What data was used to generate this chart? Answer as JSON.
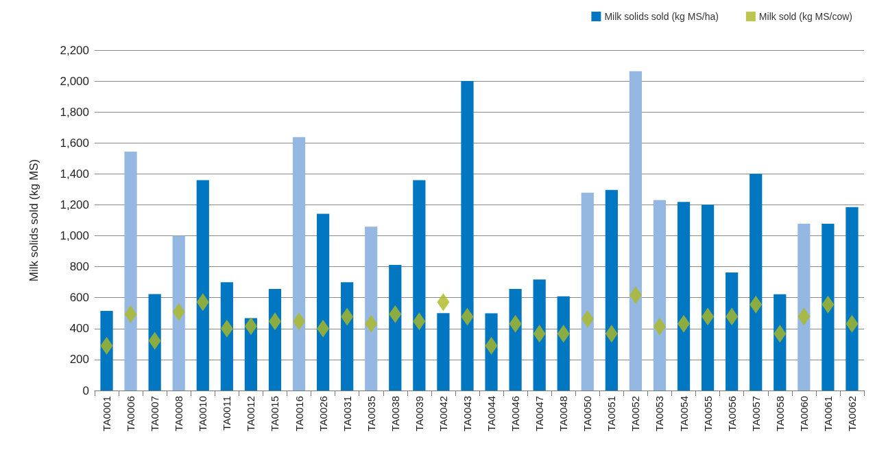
{
  "chart_data": {
    "type": "bar",
    "ylabel": "Milk solids sold (kg MS)",
    "categories": [
      "TA0001",
      "TA0006",
      "TA0007",
      "TA0008",
      "TA0010",
      "TA0011",
      "TA0012",
      "TA0015",
      "TA0016",
      "TA0026",
      "TA0031",
      "TA0035",
      "TA0038",
      "TA0039",
      "TA0042",
      "TA0043",
      "TA0044",
      "TA0046",
      "TA0047",
      "TA0048",
      "TA0050",
      "TA0051",
      "TA0052",
      "TA0053",
      "TA0054",
      "TA0055",
      "TA0056",
      "TA0057",
      "TA0058",
      "TA0060",
      "TA0061",
      "TA0062"
    ],
    "series": [
      {
        "name": "Milk solids sold (kg MS/ha)",
        "color": "#0077c0",
        "colors": [
          "#0077c0",
          "#95b8e2",
          "#0077c0",
          "#95b8e2",
          "#0077c0",
          "#0077c0",
          "#0077c0",
          "#0077c0",
          "#95b8e2",
          "#0077c0",
          "#0077c0",
          "#95b8e2",
          "#0077c0",
          "#0077c0",
          "#0077c0",
          "#0077c0",
          "#0077c0",
          "#0077c0",
          "#0077c0",
          "#0077c0",
          "#95b8e2",
          "#0077c0",
          "#95b8e2",
          "#95b8e2",
          "#0077c0",
          "#0077c0",
          "#0077c0",
          "#0077c0",
          "#0077c0",
          "#95b8e2",
          "#0077c0",
          "#0077c0"
        ],
        "values": [
          515,
          1543,
          623,
          1000,
          1360,
          700,
          468,
          657,
          1638,
          1142,
          700,
          1059,
          812,
          1360,
          500,
          2000,
          499,
          657,
          717,
          609,
          1278,
          1296,
          2064,
          1231,
          1219,
          1201,
          763,
          1401,
          622,
          1078,
          1078,
          1185
        ]
      },
      {
        "name": "Milk sold (kg MS/cow)",
        "type": "scatter",
        "marker": "diamond",
        "color": "#adb923",
        "values": [
          289,
          493,
          322,
          508,
          571,
          400,
          416,
          447,
          447,
          400,
          477,
          431,
          493,
          447,
          571,
          477,
          289,
          431,
          367,
          367,
          462,
          367,
          617,
          414,
          431,
          478,
          478,
          555,
          367,
          478,
          555,
          431
        ]
      }
    ],
    "ylim": [
      0,
      2200
    ],
    "yticks": [
      0,
      200,
      400,
      600,
      800,
      {
        "value": 1000,
        "label": "1,000"
      },
      {
        "value": 1200,
        "label": "1,200"
      },
      {
        "value": 1400,
        "label": "1,400"
      },
      {
        "value": 1600,
        "label": "1,600"
      },
      {
        "value": 1800,
        "label": "1,800"
      },
      {
        "value": 2000,
        "label": "2,000"
      },
      {
        "value": 2200,
        "label": "2,200"
      }
    ],
    "grid": "y",
    "legend": "top right"
  }
}
